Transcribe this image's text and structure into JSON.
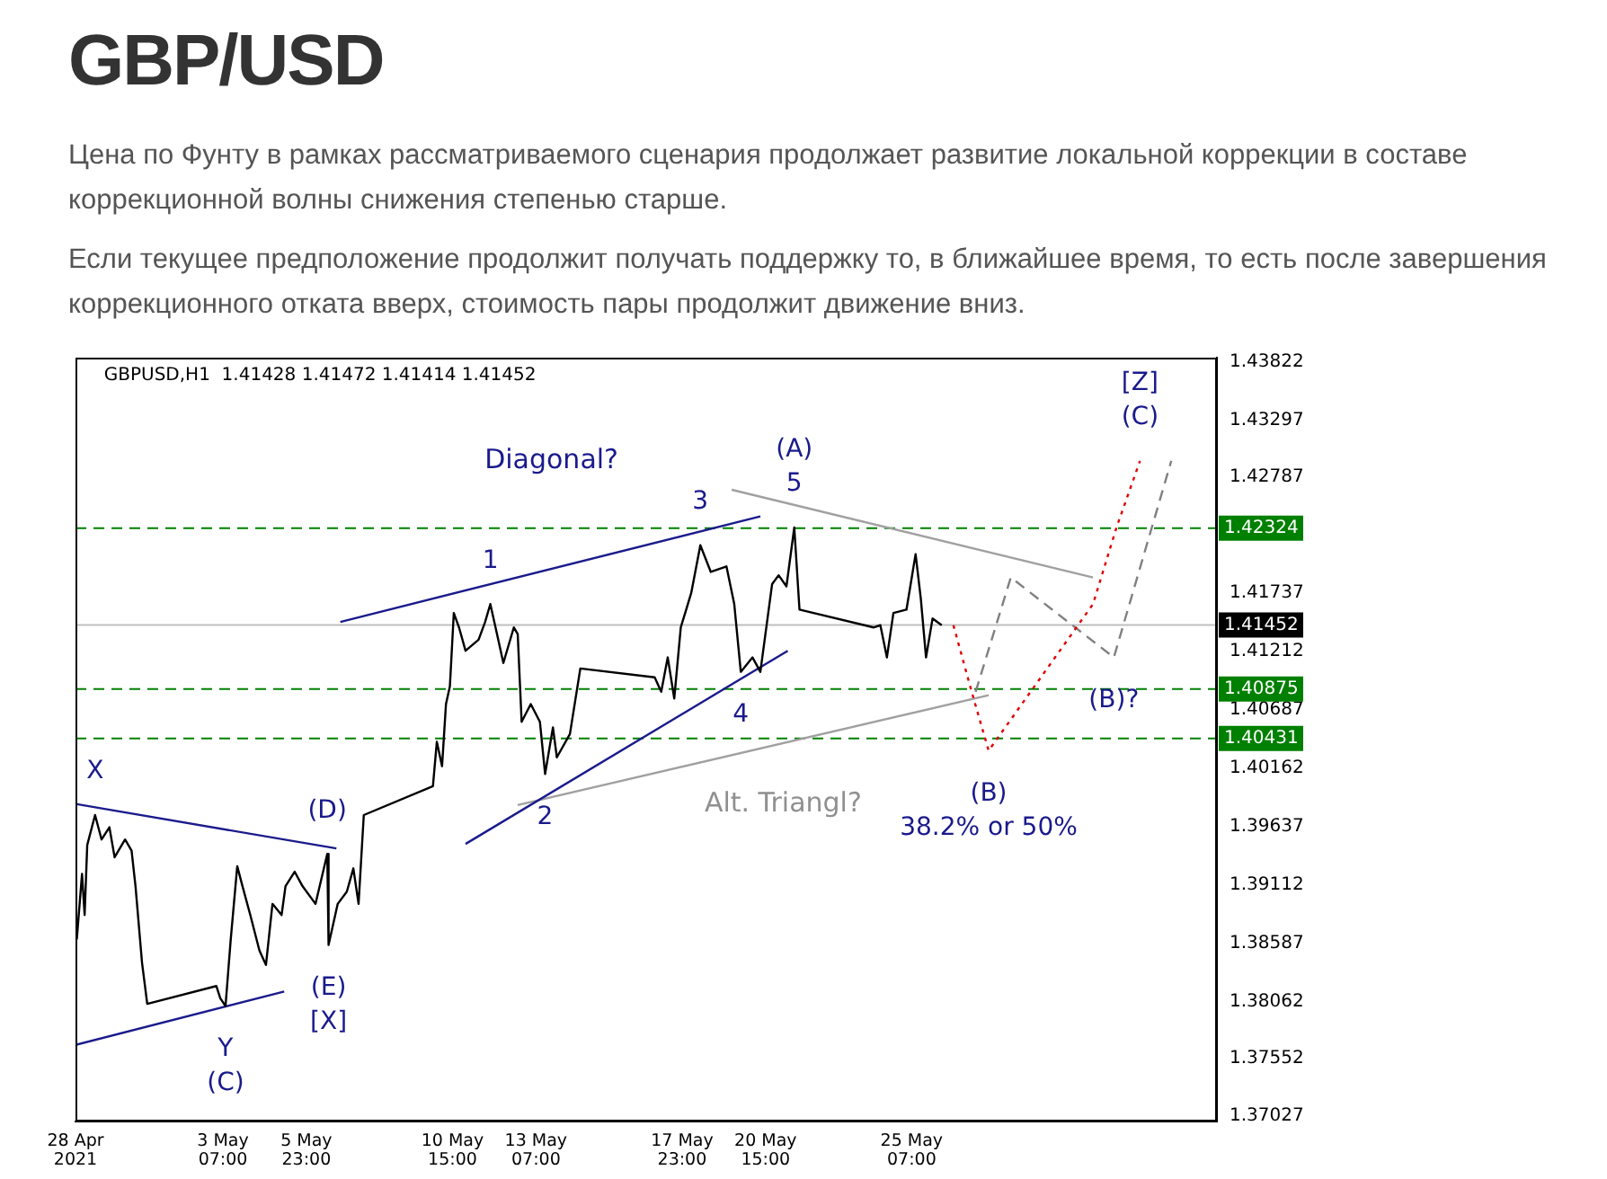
{
  "chart_data": {
    "type": "line",
    "title": "GBP/USD",
    "subtitle": "Цена по Фунту в рамках рассматриваемого сценария продолжает развитие локальной коррекции в составе коррекционной волны снижения степенью старше.",
    "annotations": [
      "Если текущее предположение продолжит получать поддержку то, в ближайшее время, то есть после завершения коррекционного отката вверх, стоимость пары продолжит движение вниз.",
      "GBPUSD,H1  1.41428 1.41472 1.41414 1.41452",
      "Diagonal?",
      "Alt. Triangl?",
      {
        "text": "X",
        "x": "2021-04-29T05:00",
        "y": 1.3974
      },
      {
        "text": "Y",
        "x": "2021-05-03T09:00",
        "y": 1.3802
      },
      {
        "text": "(C)",
        "x": "2021-05-03T09:00",
        "y": 1.3802
      },
      {
        "text": "(D)",
        "x": "2021-05-06T15:00",
        "y": 1.3939
      },
      {
        "text": "(E)",
        "x": "2021-05-06T16:00",
        "y": 1.3857
      },
      {
        "text": "[X]",
        "x": "2021-05-06T16:00",
        "y": 1.3857
      },
      {
        "text": "1",
        "x": "2021-05-11T20:00",
        "y": 1.4164
      },
      {
        "text": "2",
        "x": "2021-05-13T14:00",
        "y": 1.4011
      },
      {
        "text": "3",
        "x": "2021-05-18T13:00",
        "y": 1.4217
      },
      {
        "text": "4",
        "x": "2021-05-19T20:00",
        "y": 1.4103
      },
      {
        "text": "5",
        "x": "2021-05-21T13:00",
        "y": 1.4233
      },
      {
        "text": "(A)",
        "x": "2021-05-21T13:00",
        "y": 1.4233
      },
      {
        "text": "(B)",
        "x": "2021-05-27T18:00",
        "y": 1.4032
      },
      {
        "text": "38.2% or 50%",
        "x": "2021-05-27T18:00",
        "y": 1.4032
      },
      {
        "text": "(B)?",
        "x": "2021-05-31T18:00",
        "y": 1.4116
      },
      {
        "text": "(C)",
        "x": "2021-06-01T14:00",
        "y": 1.4293
      },
      {
        "text": "[Z]",
        "x": "2021-06-01T14:00",
        "y": 1.4293
      }
    ],
    "series": [
      {
        "color": "#000000",
        "x": [
          "2021-04-28T15:00",
          "2021-04-28T19:00",
          "2021-04-28T21:00",
          "2021-04-28T23:00",
          "2021-04-29T05:00",
          "2021-04-29T10:00",
          "2021-04-29T16:00",
          "2021-04-29T20:00",
          "2021-04-30T04:00",
          "2021-04-30T09:00",
          "2021-04-30T12:00",
          "2021-04-30T17:00",
          "2021-04-30T21:00",
          "2021-05-03T02:00",
          "2021-05-03T05:00",
          "2021-05-03T09:00",
          "2021-05-03T13:00",
          "2021-05-03T18:00",
          "2021-05-03T22:00",
          "2021-05-04T04:00",
          "2021-05-04T11:00",
          "2021-05-04T16:00",
          "2021-05-04T21:00",
          "2021-05-05T04:00",
          "2021-05-05T07:00",
          "2021-05-05T14:00",
          "2021-05-05T20:00",
          "2021-05-06T06:00",
          "2021-05-06T15:00",
          "2021-05-06T16:00",
          "2021-05-06T23:00",
          "2021-05-07T06:00",
          "2021-05-07T11:00",
          "2021-05-07T15:00",
          "2021-05-07T19:00",
          "2021-05-10T00:00",
          "2021-05-10T03:00",
          "2021-05-10T07:00",
          "2021-05-10T10:00",
          "2021-05-10T13:00",
          "2021-05-10T16:00",
          "2021-05-10T20:00",
          "2021-05-11T01:00",
          "2021-05-11T11:00",
          "2021-05-11T16:00",
          "2021-05-11T20:00",
          "2021-05-12T00:00",
          "2021-05-12T06:00",
          "2021-05-12T14:00",
          "2021-05-12T17:00",
          "2021-05-12T20:00",
          "2021-05-13T03:00",
          "2021-05-13T10:00",
          "2021-05-13T14:00",
          "2021-05-13T20:00",
          "2021-05-13T23:00",
          "2021-05-14T09:00",
          "2021-05-14T17:00",
          "2021-05-17T02:00",
          "2021-05-17T07:00",
          "2021-05-17T12:00",
          "2021-05-17T17:00",
          "2021-05-17T22:00",
          "2021-05-18T06:00",
          "2021-05-18T13:00",
          "2021-05-18T21:00",
          "2021-05-19T09:00",
          "2021-05-19T15:00",
          "2021-05-19T20:00",
          "2021-05-20T05:00",
          "2021-05-20T11:00",
          "2021-05-20T20:00",
          "2021-05-21T01:00",
          "2021-05-21T07:00",
          "2021-05-21T13:00",
          "2021-05-21T17:00",
          "2021-05-24T02:00",
          "2021-05-24T07:00",
          "2021-05-24T12:00",
          "2021-05-24T17:00",
          "2021-05-25T03:00",
          "2021-05-25T10:00",
          "2021-05-25T14:00",
          "2021-05-25T18:00",
          "2021-05-25T23:00",
          "2021-05-26T06:00"
        ],
        "values": [
          1.3862,
          1.3921,
          1.3884,
          1.3947,
          1.3974,
          1.3952,
          1.3963,
          1.3936,
          1.3952,
          1.3942,
          1.391,
          1.3841,
          1.3804,
          1.382,
          1.3809,
          1.3802,
          1.3862,
          1.3928,
          1.391,
          1.3884,
          1.3852,
          1.3839,
          1.3894,
          1.3884,
          1.391,
          1.3923,
          1.391,
          1.3894,
          1.3939,
          1.3857,
          1.3894,
          1.3905,
          1.3926,
          1.3894,
          1.3974,
          1.4,
          1.404,
          1.4018,
          1.4074,
          1.409,
          1.4156,
          1.4143,
          1.4122,
          1.4132,
          1.4148,
          1.4164,
          1.4143,
          1.4111,
          1.4143,
          1.4137,
          1.4058,
          1.4074,
          1.4058,
          1.4011,
          1.4053,
          1.4026,
          1.4047,
          1.4106,
          1.4098,
          1.4085,
          1.4116,
          1.4079,
          1.4143,
          1.4174,
          1.4217,
          1.4193,
          1.4198,
          1.4164,
          1.4103,
          1.4116,
          1.4103,
          1.4182,
          1.419,
          1.418,
          1.4233,
          1.4159,
          1.4143,
          1.4145,
          1.4116,
          1.4156,
          1.4159,
          1.4209,
          1.4169,
          1.4116,
          1.4151,
          1.4145
        ]
      },
      {
        "color": "#e00000",
        "line_style": "dotted",
        "x": [
          "2021-05-26T15:00",
          "2021-05-27T05:00",
          "2021-05-27T18:00",
          "2021-05-31T02:00",
          "2021-05-31T20:00",
          "2021-06-01T14:00"
        ],
        "values": [
          1.4145,
          1.4085,
          1.4032,
          1.4164,
          1.4233,
          1.4293
        ]
      },
      {
        "color": "#808080",
        "line_style": "dashed",
        "x": [
          "2021-05-27T08:00",
          "2021-05-28T11:00",
          "2021-05-31T18:00",
          "2021-06-02T14:00"
        ],
        "values": [
          1.4085,
          1.4188,
          1.4116,
          1.4293
        ]
      },
      {
        "color": "#1a1a8c",
        "x": [
          "2021-04-28T14:00",
          "2021-05-05T06:00"
        ],
        "values": [
          1.3767,
          1.3815
        ]
      },
      {
        "color": "#1a1a8c",
        "x": [
          "2021-04-28T14:00",
          "2021-05-06T22:00"
        ],
        "values": [
          1.3984,
          1.3944
        ]
      },
      {
        "color": "#1a1a8c",
        "x": [
          "2021-05-07T01:00",
          "2021-05-20T11:00"
        ],
        "values": [
          1.4148,
          1.4243
        ]
      },
      {
        "color": "#1a1a8c",
        "x": [
          "2021-05-11T01:00",
          "2021-05-21T08:00"
        ],
        "values": [
          1.3948,
          1.4122
        ]
      },
      {
        "color": "#a0a0a0",
        "x": [
          "2021-05-19T13:00",
          "2021-05-31T02:00"
        ],
        "values": [
          1.4267,
          1.4188
        ]
      },
      {
        "color": "#a0a0a0",
        "x": [
          "2021-05-12T17:00",
          "2021-05-27T18:00"
        ],
        "values": [
          1.3983,
          1.4082
        ]
      }
    ],
    "ref_lines": [
      {
        "axis": "y",
        "value": 1.42324,
        "label": "1.42324",
        "color": "#008000",
        "line_style": "dashed"
      },
      {
        "axis": "y",
        "value": 1.40875,
        "label": "1.40875",
        "color": "#008000",
        "line_style": "dashed"
      },
      {
        "axis": "y",
        "value": 1.40431,
        "label": "1.40431",
        "color": "#008000",
        "line_style": "dashed"
      },
      {
        "axis": "y",
        "value": 1.41452,
        "label": "1.41452",
        "color": "#c0c0c0",
        "line_style": "solid"
      }
    ],
    "xlim": [
      "2021-04-28T14:00",
      "2021-06-04T01:00"
    ],
    "xticks": [
      {
        "value": "2021-04-28T14:00",
        "label": "28 Apr 2021"
      },
      {
        "value": "2021-05-03T07:00",
        "label": "3 May 07:00"
      },
      {
        "value": "2021-05-05T23:00",
        "label": "5 May 23:00"
      },
      {
        "value": "2021-05-10T15:00",
        "label": "10 May 15:00"
      },
      {
        "value": "2021-05-13T07:00",
        "label": "13 May 07:00"
      },
      {
        "value": "2021-05-17T23:00",
        "label": "17 May 23:00"
      },
      {
        "value": "2021-05-20T15:00",
        "label": "20 May 15:00"
      },
      {
        "value": "2021-05-25T07:00",
        "label": "25 May 07:00"
      }
    ],
    "ylim": [
      1.3698,
      1.4386
    ],
    "yticks": [
      1.43822,
      1.43297,
      1.42787,
      1.41737,
      1.41212,
      1.40687,
      1.40162,
      1.39637,
      1.39112,
      1.38587,
      1.38062,
      1.37552,
      1.37027
    ],
    "grid": false,
    "legend": false,
    "marker": "none"
  }
}
